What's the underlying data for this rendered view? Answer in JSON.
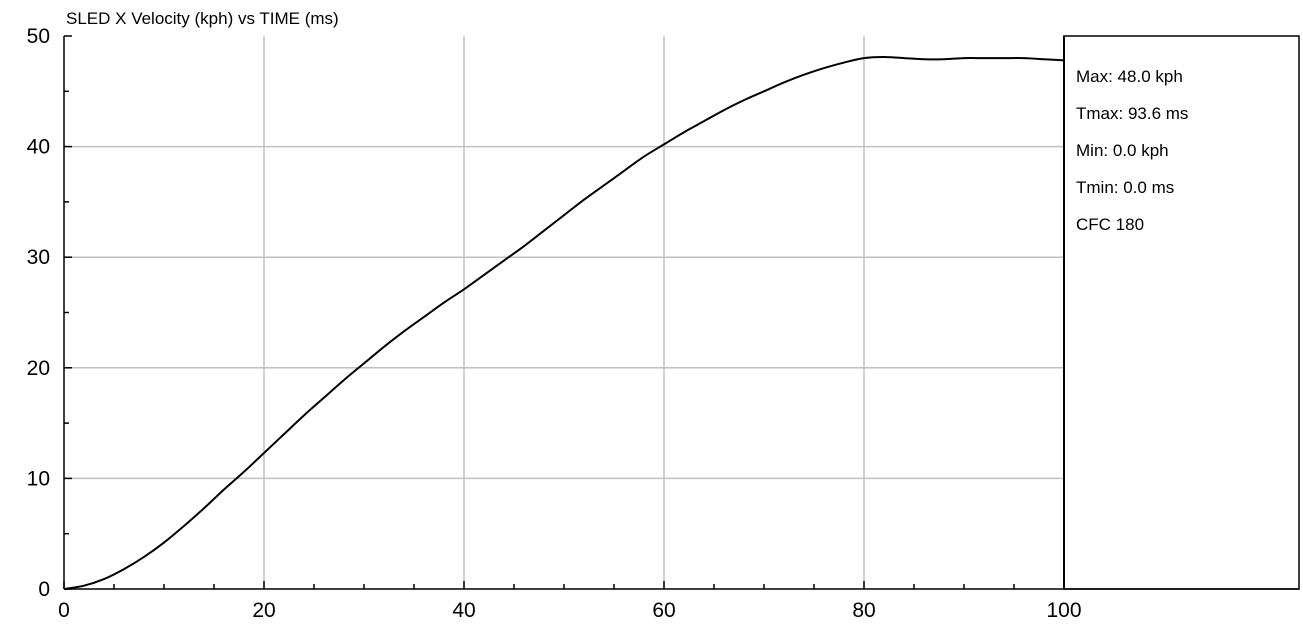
{
  "chart_data": {
    "type": "line",
    "title": "SLED X Velocity (kph) vs TIME (ms)",
    "xlabel": "",
    "ylabel": "",
    "xlim": [
      0,
      100
    ],
    "ylim": [
      0,
      50
    ],
    "x_ticks": [
      0,
      20,
      40,
      60,
      80,
      100
    ],
    "y_ticks": [
      0,
      10,
      20,
      30,
      40,
      50
    ],
    "grid": true,
    "series": [
      {
        "x": [
          0,
          2,
          4,
          6,
          8,
          10,
          12,
          14,
          16,
          18,
          20,
          22,
          24,
          26,
          28,
          30,
          32,
          34,
          36,
          38,
          40,
          42,
          44,
          46,
          48,
          50,
          52,
          54,
          56,
          58,
          60,
          62,
          64,
          66,
          68,
          70,
          72,
          74,
          76,
          78,
          80,
          82,
          84,
          86,
          88,
          90,
          92,
          94,
          96,
          98,
          100
        ],
        "values": [
          0.0,
          0.3,
          0.9,
          1.8,
          2.9,
          4.2,
          5.7,
          7.3,
          9.0,
          10.6,
          12.3,
          14.0,
          15.7,
          17.3,
          18.9,
          20.4,
          21.9,
          23.3,
          24.6,
          25.9,
          27.1,
          28.4,
          29.7,
          31.0,
          32.4,
          33.8,
          35.2,
          36.5,
          37.8,
          39.1,
          40.2,
          41.3,
          42.3,
          43.3,
          44.2,
          45.0,
          45.8,
          46.5,
          47.1,
          47.6,
          48.0,
          48.1,
          48.0,
          47.9,
          47.9,
          48.0,
          48.0,
          48.0,
          48.0,
          47.9,
          47.8
        ]
      }
    ],
    "stats": [
      "Max: 48.0 kph",
      "Tmax: 93.6 ms",
      "Min: 0.0 kph",
      "Tmin: 0.0 ms",
      "CFC 180"
    ]
  }
}
